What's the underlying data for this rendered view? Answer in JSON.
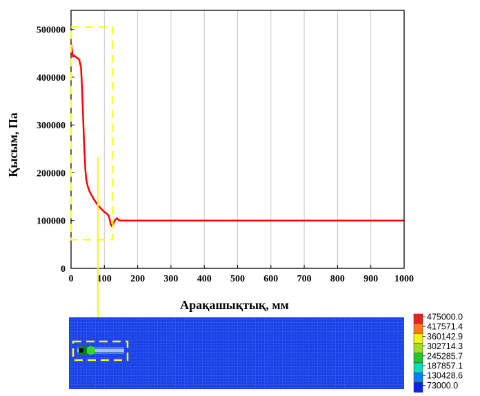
{
  "chart_data": [
    {
      "type": "line",
      "title": "",
      "xlabel": "Арақашықтық, мм",
      "ylabel": "Қысым, Па",
      "xlim": [
        0,
        1000
      ],
      "ylim": [
        0,
        540000
      ],
      "xticks": [
        0,
        100,
        200,
        300,
        400,
        500,
        600,
        700,
        800,
        900,
        1000
      ],
      "yticks": [
        0,
        100000,
        200000,
        300000,
        400000,
        500000
      ],
      "grid": "vertical lines at x ticks",
      "series": [
        {
          "color": "#ff0000",
          "x": [
            0,
            3,
            6,
            10,
            15,
            20,
            25,
            30,
            33,
            36,
            40,
            43,
            46,
            50,
            55,
            60,
            70,
            80,
            90,
            100,
            108,
            113,
            116,
            119,
            123,
            128,
            133,
            138,
            143,
            150,
            160,
            200,
            300,
            400,
            500,
            600,
            700,
            800,
            900,
            1000
          ],
          "y": [
            470000,
            455000,
            443000,
            445000,
            442000,
            440000,
            436000,
            420000,
            380000,
            320000,
            250000,
            205000,
            185000,
            172000,
            162000,
            155000,
            143000,
            133000,
            125000,
            118000,
            114000,
            110000,
            103000,
            92000,
            88000,
            95000,
            102000,
            105000,
            101000,
            100000,
            100000,
            100000,
            100000,
            100000,
            100000,
            100000,
            100000,
            100000,
            100000,
            100000
          ]
        }
      ],
      "annotation": {
        "type": "dashed-box",
        "color": "#ffff00",
        "x_range": [
          0,
          125
        ],
        "y_range": [
          60000,
          505000
        ]
      }
    },
    {
      "type": "heatmap",
      "colorbar": {
        "labels": [
          "475000.0",
          "417571.4",
          "360142.9",
          "302714.3",
          "245285.7",
          "187857.1",
          "130428.6",
          "73000.0"
        ],
        "colors": [
          "#e8231d",
          "#ff7a1a",
          "#f2f21d",
          "#9fdc28",
          "#1ec829",
          "#12d8c0",
          "#0d7df0",
          "#0a25e6"
        ]
      },
      "background_color": "#1740e6",
      "highlight_color": "#ffff00"
    }
  ]
}
